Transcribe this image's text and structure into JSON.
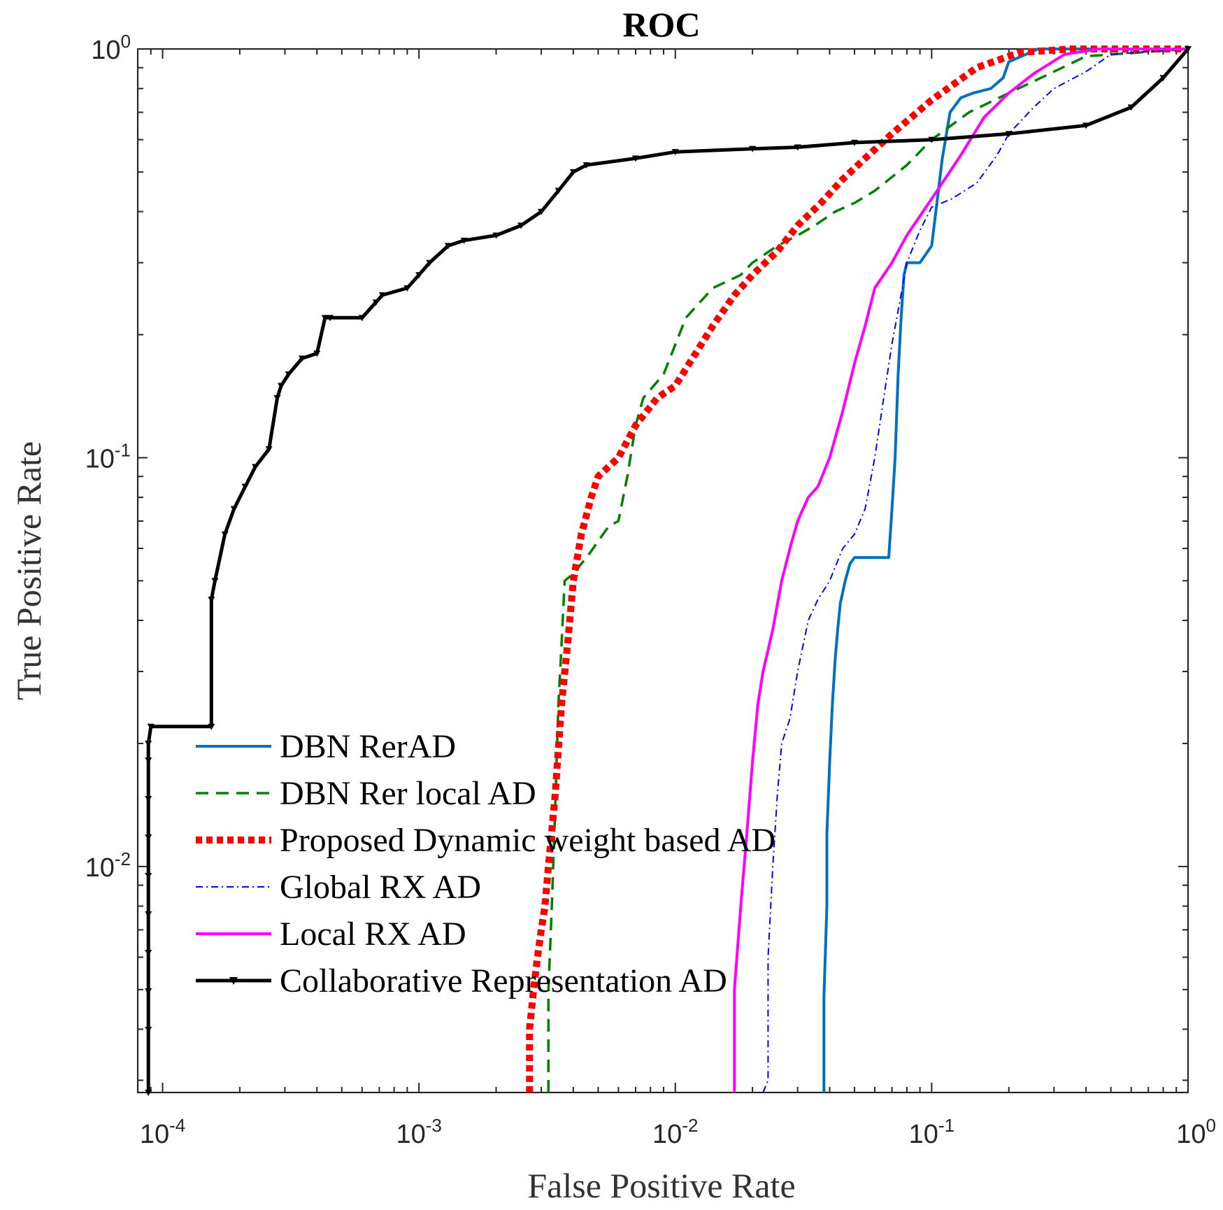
{
  "chart_data": {
    "type": "line",
    "title": "ROC",
    "xlabel": "False Positive Rate",
    "ylabel": "True Positive Rate",
    "xscale": "log",
    "yscale": "log",
    "xlim": [
      8e-05,
      1
    ],
    "ylim": [
      0.0028,
      1
    ],
    "x_ticks": [
      {
        "base": "10",
        "exp": "-4",
        "value": 0.0001
      },
      {
        "base": "10",
        "exp": "-3",
        "value": 0.001
      },
      {
        "base": "10",
        "exp": "-2",
        "value": 0.01
      },
      {
        "base": "10",
        "exp": "-1",
        "value": 0.1
      },
      {
        "base": "10",
        "exp": "0",
        "value": 1
      }
    ],
    "y_ticks": [
      {
        "base": "10",
        "exp": "-2",
        "value": 0.01
      },
      {
        "base": "10",
        "exp": "-1",
        "value": 0.1
      },
      {
        "base": "10",
        "exp": "0",
        "value": 1
      }
    ],
    "grid": false,
    "legend_position": "bottom-left",
    "series": [
      {
        "name": "DBN RerAD",
        "color": "#0072BD",
        "style": "solid",
        "x": [
          0.038,
          0.038,
          0.039,
          0.039,
          0.04,
          0.041,
          0.042,
          0.043,
          0.044,
          0.046,
          0.048,
          0.05,
          0.055,
          0.068,
          0.07,
          0.072,
          0.074,
          0.076,
          0.078,
          0.08,
          0.09,
          0.1,
          0.11,
          0.118,
          0.13,
          0.145,
          0.17,
          0.19,
          0.2,
          0.26,
          0.4,
          1.0
        ],
        "y": [
          0.0028,
          0.0048,
          0.008,
          0.012,
          0.018,
          0.025,
          0.032,
          0.038,
          0.044,
          0.05,
          0.055,
          0.057,
          0.057,
          0.057,
          0.075,
          0.1,
          0.16,
          0.22,
          0.28,
          0.3,
          0.3,
          0.33,
          0.54,
          0.7,
          0.76,
          0.78,
          0.8,
          0.85,
          0.93,
          1.0,
          1.0,
          1.0
        ]
      },
      {
        "name": "DBN Rer local AD",
        "color": "#008000",
        "style": "dashed",
        "x": [
          0.0032,
          0.0032,
          0.0033,
          0.0034,
          0.0035,
          0.0036,
          0.0037,
          0.004,
          0.0046,
          0.0055,
          0.006,
          0.0065,
          0.007,
          0.0075,
          0.009,
          0.011,
          0.014,
          0.018,
          0.02,
          0.025,
          0.03,
          0.035,
          0.042,
          0.05,
          0.06,
          0.08,
          0.1,
          0.14,
          0.2,
          0.3,
          0.4,
          1.0
        ],
        "y": [
          0.0028,
          0.005,
          0.008,
          0.014,
          0.025,
          0.035,
          0.05,
          0.052,
          0.058,
          0.068,
          0.07,
          0.09,
          0.12,
          0.14,
          0.16,
          0.22,
          0.26,
          0.28,
          0.3,
          0.33,
          0.35,
          0.37,
          0.4,
          0.42,
          0.45,
          0.52,
          0.6,
          0.7,
          0.78,
          0.88,
          0.96,
          1.0
        ]
      },
      {
        "name": "Proposed Dynamic weight based AD",
        "color": "#FF0000",
        "style": "dotted-thick",
        "x": [
          0.0027,
          0.0027,
          0.0028,
          0.0029,
          0.003,
          0.0031,
          0.0032,
          0.0034,
          0.0036,
          0.0038,
          0.004,
          0.0043,
          0.0047,
          0.005,
          0.006,
          0.007,
          0.0085,
          0.01,
          0.012,
          0.014,
          0.017,
          0.02,
          0.025,
          0.03,
          0.037,
          0.045,
          0.055,
          0.07,
          0.1,
          0.15,
          0.22,
          0.35,
          0.6,
          1.0
        ],
        "y": [
          0.0028,
          0.004,
          0.005,
          0.006,
          0.007,
          0.008,
          0.01,
          0.015,
          0.025,
          0.035,
          0.05,
          0.065,
          0.08,
          0.09,
          0.1,
          0.12,
          0.14,
          0.15,
          0.18,
          0.21,
          0.25,
          0.28,
          0.32,
          0.37,
          0.42,
          0.48,
          0.54,
          0.62,
          0.75,
          0.9,
          0.98,
          1.0,
          1.0,
          1.0
        ]
      },
      {
        "name": "Global RX AD",
        "color": "#0000FF",
        "style": "dashdot",
        "x": [
          0.022,
          0.023,
          0.023,
          0.024,
          0.025,
          0.026,
          0.028,
          0.03,
          0.033,
          0.036,
          0.04,
          0.045,
          0.05,
          0.055,
          0.06,
          0.065,
          0.07,
          0.075,
          0.08,
          0.09,
          0.1,
          0.12,
          0.15,
          0.18,
          0.2,
          0.25,
          0.3,
          0.4,
          0.5,
          1.0
        ],
        "y": [
          0.0028,
          0.003,
          0.006,
          0.01,
          0.015,
          0.02,
          0.023,
          0.03,
          0.04,
          0.045,
          0.05,
          0.06,
          0.065,
          0.075,
          0.1,
          0.14,
          0.19,
          0.24,
          0.3,
          0.36,
          0.41,
          0.43,
          0.47,
          0.55,
          0.62,
          0.72,
          0.8,
          0.88,
          0.97,
          1.0
        ]
      },
      {
        "name": "Local RX AD",
        "color": "#FF00FF",
        "style": "solid",
        "x": [
          0.017,
          0.017,
          0.018,
          0.019,
          0.02,
          0.021,
          0.022,
          0.024,
          0.026,
          0.028,
          0.03,
          0.033,
          0.036,
          0.04,
          0.045,
          0.05,
          0.055,
          0.06,
          0.07,
          0.08,
          0.09,
          0.1,
          0.11,
          0.13,
          0.16,
          0.2,
          0.25,
          0.33,
          0.45,
          1.0
        ],
        "y": [
          0.0028,
          0.005,
          0.008,
          0.012,
          0.018,
          0.025,
          0.03,
          0.038,
          0.05,
          0.06,
          0.07,
          0.08,
          0.085,
          0.1,
          0.13,
          0.17,
          0.21,
          0.26,
          0.3,
          0.35,
          0.39,
          0.43,
          0.47,
          0.55,
          0.68,
          0.78,
          0.87,
          0.97,
          1.0,
          1.0
        ]
      },
      {
        "name": "Collaborative Representation AD",
        "color": "#000000",
        "style": "solid-marker",
        "x": [
          8.8e-05,
          8.8e-05,
          9e-05,
          0.000155,
          0.000155,
          0.00016,
          0.000175,
          0.00019,
          0.00021,
          0.00023,
          0.00026,
          0.00028,
          0.00029,
          0.00031,
          0.00035,
          0.0004,
          0.00043,
          0.00045,
          0.0006,
          0.00068,
          0.00072,
          0.0009,
          0.001,
          0.0011,
          0.0013,
          0.0015,
          0.002,
          0.0025,
          0.003,
          0.0035,
          0.004,
          0.0045,
          0.007,
          0.01,
          0.02,
          0.03,
          0.05,
          0.1,
          0.2,
          0.4,
          0.6,
          0.8,
          1.0
        ],
        "y": [
          0.0028,
          0.02,
          0.022,
          0.022,
          0.045,
          0.05,
          0.065,
          0.075,
          0.085,
          0.095,
          0.105,
          0.14,
          0.15,
          0.16,
          0.175,
          0.18,
          0.22,
          0.22,
          0.22,
          0.24,
          0.25,
          0.26,
          0.28,
          0.3,
          0.33,
          0.34,
          0.35,
          0.37,
          0.4,
          0.45,
          0.5,
          0.52,
          0.54,
          0.56,
          0.57,
          0.575,
          0.59,
          0.6,
          0.62,
          0.65,
          0.72,
          0.85,
          1.0
        ]
      }
    ]
  }
}
